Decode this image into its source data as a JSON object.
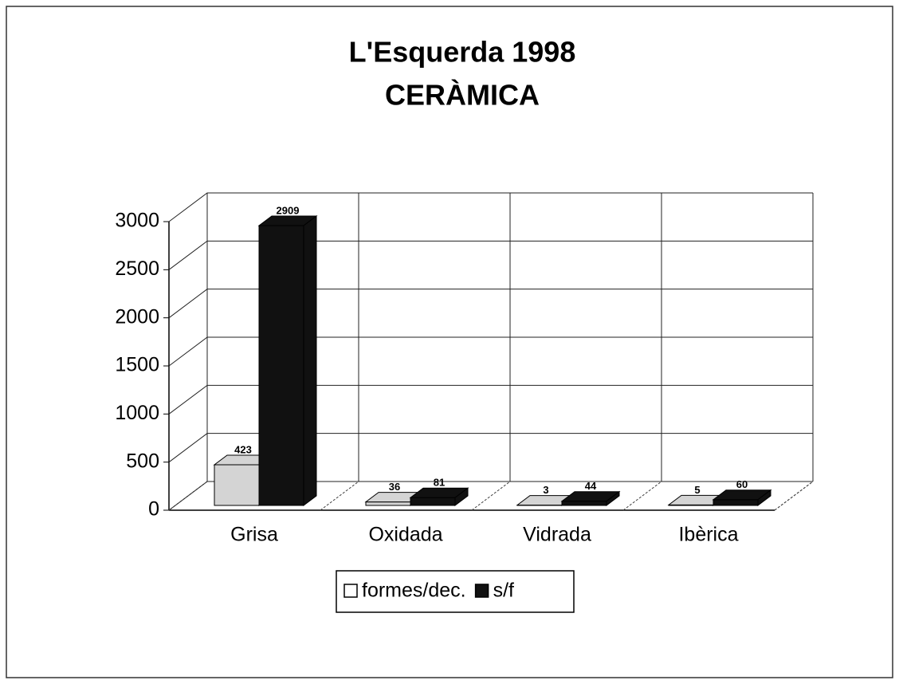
{
  "chart_data": {
    "type": "bar3d",
    "title": "L'Esquerda 1998",
    "subtitle": "CERÀMICA",
    "categories": [
      "Grisa",
      "Oxidada",
      "Vidrada",
      "Ibèrica"
    ],
    "series": [
      {
        "name": "formes/dec.",
        "color": "#d4d4d4",
        "values": [
          423,
          36,
          3,
          5
        ]
      },
      {
        "name": "s/f",
        "color": "#111111",
        "values": [
          2909,
          81,
          44,
          60
        ]
      }
    ],
    "ylim": [
      0,
      3000
    ],
    "yticks": [
      0,
      500,
      1000,
      1500,
      2000,
      2500,
      3000
    ],
    "grid": true,
    "legend": "bottom"
  }
}
